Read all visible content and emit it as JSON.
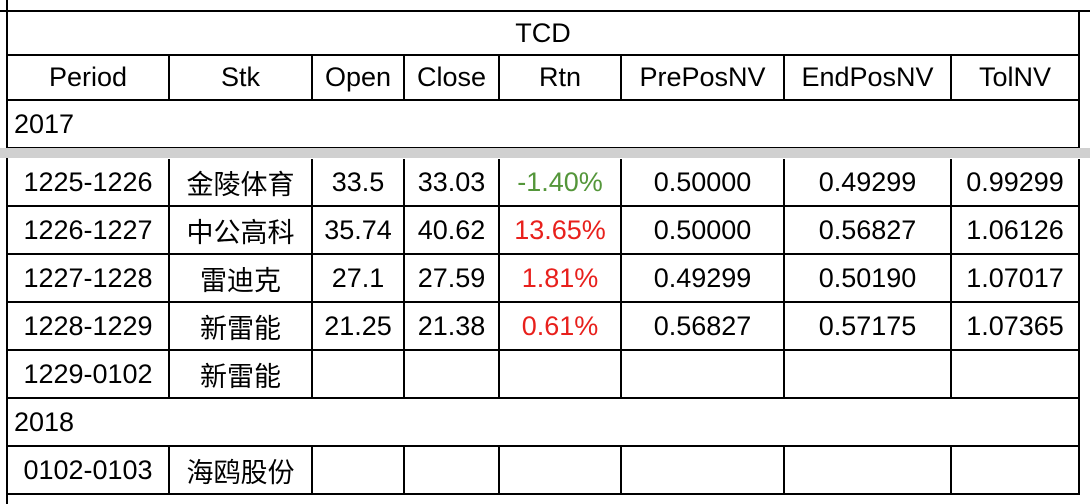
{
  "table": {
    "title": "TCD",
    "columns": [
      "Period",
      "Stk",
      "Open",
      "Close",
      "Rtn",
      "PrePosNV",
      "EndPosNV",
      "TolNV"
    ],
    "rtn_colors": {
      "loss": "#54963a",
      "gain": "#e8201c"
    },
    "sections": [
      {
        "label": "2017",
        "rows": [
          [
            "1225-1226",
            "金陵体育",
            "33.5",
            "33.03",
            "-1.40%",
            "0.50000",
            "0.49299",
            "0.99299"
          ],
          [
            "1226-1227",
            "中公高科",
            "35.74",
            "40.62",
            "13.65%",
            "0.50000",
            "0.56827",
            "1.06126"
          ],
          [
            "1227-1228",
            "雷迪克",
            "27.1",
            "27.59",
            "1.81%",
            "0.49299",
            "0.50190",
            "1.07017"
          ],
          [
            "1228-1229",
            "新雷能",
            "21.25",
            "21.38",
            "0.61%",
            "0.56827",
            "0.57175",
            "1.07365"
          ],
          [
            "1229-0102",
            "新雷能",
            null,
            null,
            null,
            null,
            null,
            null
          ]
        ]
      },
      {
        "label": "2018",
        "rows": [
          [
            "0102-0103",
            "海鸥股份",
            null,
            null,
            null,
            null,
            null,
            null
          ]
        ]
      }
    ]
  }
}
